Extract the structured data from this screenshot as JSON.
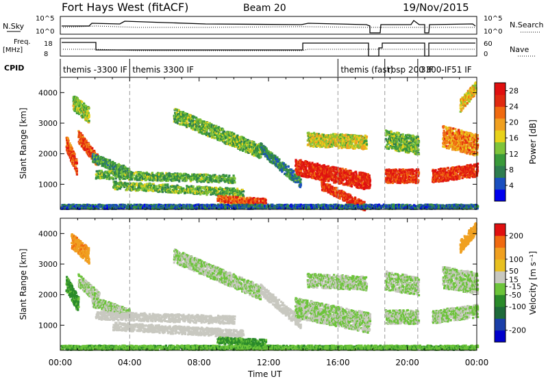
{
  "header": {
    "station": "Fort Hays West (fitACF)",
    "beam": "Beam 20",
    "date": "19/Nov/2015"
  },
  "strip_labels": {
    "noise_left": "N.Sky",
    "noise_right": "N.Search",
    "noise_ticks_left": [
      "10^5",
      "10^0"
    ],
    "noise_ticks_right": [
      "10^5",
      "10^0"
    ],
    "freq_left_line1": "Freq.",
    "freq_left_line2": "[MHz]",
    "freq_ticks": [
      "18",
      "8"
    ],
    "nave_right": "Nave",
    "nave_ticks": [
      "60",
      "0"
    ],
    "cpid": "CPID"
  },
  "cpid_segments": [
    {
      "label": "themis -3300 IF",
      "start": 0,
      "end": 4.0
    },
    {
      "label": "themis 3300 IF",
      "start": 4.0,
      "end": 16.0
    },
    {
      "label": "themis (fast)",
      "start": 16.0,
      "end": 18.7
    },
    {
      "label": "rbsp 200 IF",
      "start": 18.7,
      "end": 20.6
    },
    {
      "label": "3300-IF51 IF",
      "start": 20.6,
      "end": 24.0
    }
  ],
  "colors": {
    "power": [
      "#0000ee",
      "#1a4fbf",
      "#2e7d4f",
      "#3a9a3a",
      "#7fc43a",
      "#e8d21a",
      "#f0a020",
      "#f06a10",
      "#e02a10",
      "#e01010"
    ],
    "velocity": [
      "#0000cc",
      "#1a3fa8",
      "#1e6a3a",
      "#2a8a2a",
      "#6cc43a",
      "#c8c8c0",
      "#e8c020",
      "#f0a020",
      "#f06a10",
      "#e01010"
    ],
    "gap": "#c8c8c8"
  },
  "chart_data": [
    {
      "type": "heatmap",
      "name": "power",
      "xlabel": "Time UT",
      "ylabel": "Slant Range [km]",
      "xlim": [
        0,
        24
      ],
      "ylim": [
        180,
        4500
      ],
      "xticks": [
        "00:00",
        "04:00",
        "08:00",
        "12:00",
        "16:00",
        "20:00",
        "00:00"
      ],
      "yticks": [
        1000,
        2000,
        3000,
        4000
      ],
      "colorbar": {
        "label": "Power [dB]",
        "ticks": [
          4,
          8,
          12,
          16,
          20,
          24,
          28
        ],
        "range": [
          0,
          30
        ]
      },
      "bands": [
        {
          "t0": 0.3,
          "r0": 2400,
          "t1": 0.9,
          "r1": 1600,
          "value": 24,
          "width": 500
        },
        {
          "t0": 0.7,
          "r0": 3700,
          "t1": 1.6,
          "r1": 3300,
          "value": 14,
          "width": 500
        },
        {
          "t0": 1.0,
          "r0": 2600,
          "t1": 2.1,
          "r1": 1800,
          "value": 24,
          "width": 400
        },
        {
          "t0": 1.8,
          "r0": 1900,
          "t1": 4.0,
          "r1": 1400,
          "value": 10,
          "width": 300
        },
        {
          "t0": 2.0,
          "r0": 1350,
          "t1": 10.0,
          "r1": 1200,
          "value": 11,
          "width": 260
        },
        {
          "t0": 3.0,
          "r0": 1000,
          "t1": 10.5,
          "r1": 750,
          "value": 12,
          "width": 260
        },
        {
          "t0": 6.5,
          "r0": 3300,
          "t1": 11.5,
          "r1": 2100,
          "value": 12,
          "width": 450
        },
        {
          "t0": 9.0,
          "r0": 550,
          "t1": 11.8,
          "r1": 450,
          "value": 24,
          "width": 220
        },
        {
          "t0": 11.5,
          "r0": 2200,
          "t1": 13.8,
          "r1": 1100,
          "value": 8,
          "width": 350
        },
        {
          "t0": 13.5,
          "r0": 1600,
          "t1": 17.8,
          "r1": 1100,
          "value": 27,
          "width": 520
        },
        {
          "t0": 15.0,
          "r0": 1000,
          "t1": 17.5,
          "r1": 300,
          "value": 26,
          "width": 300
        },
        {
          "t0": 14.2,
          "r0": 2500,
          "t1": 17.6,
          "r1": 2400,
          "value": 16,
          "width": 450
        },
        {
          "t0": 18.7,
          "r0": 1300,
          "t1": 20.6,
          "r1": 1300,
          "value": 26,
          "width": 450
        },
        {
          "t0": 18.7,
          "r0": 2500,
          "t1": 20.6,
          "r1": 2300,
          "value": 12,
          "width": 600
        },
        {
          "t0": 21.4,
          "r0": 1300,
          "t1": 24.0,
          "r1": 1500,
          "value": 26,
          "width": 420
        },
        {
          "t0": 22.0,
          "r0": 2600,
          "t1": 24.0,
          "r1": 2300,
          "value": 21,
          "width": 700
        },
        {
          "t0": 23.0,
          "r0": 3600,
          "t1": 23.9,
          "r1": 4200,
          "value": 18,
          "width": 400
        },
        {
          "t0": 0.0,
          "r0": 300,
          "t1": 24.0,
          "r1": 300,
          "value": 6,
          "width": 140
        }
      ],
      "data_gaps": [
        [
          17.9,
          18.6
        ],
        [
          20.65,
          21.3
        ]
      ]
    },
    {
      "type": "heatmap",
      "name": "velocity",
      "xlabel": "Time UT",
      "ylabel": "Slant Range [km]",
      "xlim": [
        0,
        24
      ],
      "ylim": [
        180,
        4500
      ],
      "xticks": [
        "00:00",
        "04:00",
        "08:00",
        "12:00",
        "16:00",
        "20:00",
        "00:00"
      ],
      "yticks": [
        1000,
        2000,
        3000,
        4000
      ],
      "colorbar": {
        "label": "Velocity [m s⁻¹]",
        "ticks": [
          200,
          100,
          50,
          15,
          -15,
          -50,
          -100,
          -200
        ],
        "range": [
          -250,
          250
        ]
      },
      "bands": [
        {
          "t0": 0.3,
          "r0": 2400,
          "t1": 1.0,
          "r1": 1700,
          "value": -60,
          "width": 500
        },
        {
          "t0": 1.0,
          "r0": 2500,
          "t1": 2.2,
          "r1": 1900,
          "value": 0,
          "width": 400
        },
        {
          "t0": 0.6,
          "r0": 3800,
          "t1": 1.6,
          "r1": 3300,
          "value": 140,
          "width": 500
        },
        {
          "t0": 1.8,
          "r0": 1800,
          "t1": 4.0,
          "r1": 1400,
          "value": 0,
          "width": 320
        },
        {
          "t0": 2.0,
          "r0": 1350,
          "t1": 10.0,
          "r1": 1200,
          "value": 30,
          "width": 260
        },
        {
          "t0": 3.0,
          "r0": 1000,
          "t1": 10.5,
          "r1": 750,
          "value": 30,
          "width": 260
        },
        {
          "t0": 6.5,
          "r0": 3300,
          "t1": 11.5,
          "r1": 2100,
          "value": 0,
          "width": 450
        },
        {
          "t0": 9.0,
          "r0": 550,
          "t1": 11.8,
          "r1": 450,
          "value": -60,
          "width": 220
        },
        {
          "t0": 11.5,
          "r0": 2200,
          "t1": 13.8,
          "r1": 1100,
          "value": 30,
          "width": 350
        },
        {
          "t0": 13.5,
          "r0": 1600,
          "t1": 17.8,
          "r1": 1100,
          "value": 0,
          "width": 650
        },
        {
          "t0": 14.2,
          "r0": 2500,
          "t1": 17.6,
          "r1": 2400,
          "value": 0,
          "width": 450
        },
        {
          "t0": 18.7,
          "r0": 1300,
          "t1": 20.6,
          "r1": 1300,
          "value": 0,
          "width": 450
        },
        {
          "t0": 18.7,
          "r0": 2500,
          "t1": 20.6,
          "r1": 2300,
          "value": 0,
          "width": 600
        },
        {
          "t0": 21.4,
          "r0": 1300,
          "t1": 24.0,
          "r1": 1500,
          "value": 0,
          "width": 420
        },
        {
          "t0": 22.0,
          "r0": 2600,
          "t1": 24.0,
          "r1": 2400,
          "value": 0,
          "width": 700
        },
        {
          "t0": 23.0,
          "r0": 3600,
          "t1": 23.9,
          "r1": 4200,
          "value": 120,
          "width": 400
        },
        {
          "t0": 0.0,
          "r0": 300,
          "t1": 24.0,
          "r1": 300,
          "value": -40,
          "width": 140
        }
      ],
      "data_gaps": [
        [
          17.9,
          18.6
        ],
        [
          20.65,
          21.3
        ]
      ]
    }
  ]
}
